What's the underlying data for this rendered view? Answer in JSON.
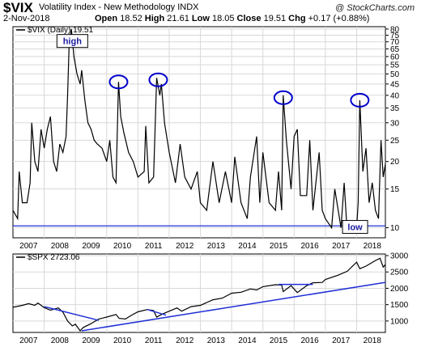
{
  "header": {
    "symbol": "$VIX",
    "name": "Volatility Index - New Methodology",
    "exchange": "INDX",
    "copyright": "@ StockCharts.com",
    "date": "2-Nov-2018",
    "open_label": "Open",
    "open": "18.52",
    "high_label": "High",
    "high": "21.61",
    "low_label": "Low",
    "low": "18.05",
    "close_label": "Close",
    "close": "19.51",
    "chg_label": "Chg",
    "chg": "+0.17 (+0.88%)"
  },
  "colors": {
    "line": "#000000",
    "trend": "#1f2fd6",
    "circle": "#0000cc",
    "grid": "#d8d8d8"
  },
  "chart_data": [
    {
      "type": "line",
      "legend": "$VIX (Daily) 19.51",
      "y_scale": "log",
      "ylim": [
        9,
        82
      ],
      "yticks": [
        10,
        15,
        20,
        25,
        30,
        35,
        40,
        45,
        50,
        55,
        60,
        65,
        70,
        75,
        80
      ],
      "xticks": [
        "2007",
        "2008",
        "2009",
        "2010",
        "2011",
        "2012",
        "2013",
        "2014",
        "2015",
        "2016",
        "2017",
        "2018"
      ],
      "xlim": [
        2007.0,
        2018.92
      ],
      "series": [
        {
          "values": [
            [
              2007.0,
              12
            ],
            [
              2007.15,
              11
            ],
            [
              2007.2,
              18
            ],
            [
              2007.3,
              13
            ],
            [
              2007.45,
              13
            ],
            [
              2007.55,
              16
            ],
            [
              2007.6,
              30
            ],
            [
              2007.7,
              20
            ],
            [
              2007.8,
              18
            ],
            [
              2007.9,
              28
            ],
            [
              2008.0,
              23
            ],
            [
              2008.1,
              28
            ],
            [
              2008.2,
              32
            ],
            [
              2008.3,
              20
            ],
            [
              2008.4,
              18
            ],
            [
              2008.5,
              24
            ],
            [
              2008.6,
              22
            ],
            [
              2008.7,
              26
            ],
            [
              2008.75,
              40
            ],
            [
              2008.8,
              70
            ],
            [
              2008.87,
              80
            ],
            [
              2008.95,
              60
            ],
            [
              2009.05,
              50
            ],
            [
              2009.15,
              45
            ],
            [
              2009.2,
              52
            ],
            [
              2009.3,
              38
            ],
            [
              2009.4,
              30
            ],
            [
              2009.5,
              28
            ],
            [
              2009.6,
              25
            ],
            [
              2009.7,
              24
            ],
            [
              2009.85,
              23
            ],
            [
              2010.0,
              20
            ],
            [
              2010.1,
              25
            ],
            [
              2010.2,
              17
            ],
            [
              2010.3,
              16
            ],
            [
              2010.38,
              46
            ],
            [
              2010.45,
              32
            ],
            [
              2010.55,
              27
            ],
            [
              2010.7,
              22
            ],
            [
              2010.85,
              20
            ],
            [
              2011.0,
              17
            ],
            [
              2011.2,
              18
            ],
            [
              2011.25,
              29
            ],
            [
              2011.35,
              16
            ],
            [
              2011.5,
              17
            ],
            [
              2011.6,
              48
            ],
            [
              2011.7,
              40
            ],
            [
              2011.75,
              45
            ],
            [
              2011.85,
              30
            ],
            [
              2012.0,
              22
            ],
            [
              2012.2,
              16
            ],
            [
              2012.35,
              24
            ],
            [
              2012.5,
              17
            ],
            [
              2012.7,
              15
            ],
            [
              2012.9,
              18
            ],
            [
              2013.0,
              13
            ],
            [
              2013.2,
              12
            ],
            [
              2013.4,
              20
            ],
            [
              2013.6,
              13
            ],
            [
              2013.8,
              18
            ],
            [
              2014.0,
              13
            ],
            [
              2014.1,
              21
            ],
            [
              2014.3,
              13
            ],
            [
              2014.5,
              11
            ],
            [
              2014.6,
              17
            ],
            [
              2014.8,
              26
            ],
            [
              2014.9,
              13
            ],
            [
              2015.0,
              22
            ],
            [
              2015.2,
              13
            ],
            [
              2015.4,
              12
            ],
            [
              2015.5,
              18
            ],
            [
              2015.6,
              12
            ],
            [
              2015.65,
              40
            ],
            [
              2015.75,
              25
            ],
            [
              2015.9,
              15
            ],
            [
              2016.0,
              26
            ],
            [
              2016.1,
              28
            ],
            [
              2016.2,
              14
            ],
            [
              2016.4,
              14
            ],
            [
              2016.5,
              25
            ],
            [
              2016.6,
              12
            ],
            [
              2016.8,
              22
            ],
            [
              2016.9,
              12
            ],
            [
              2017.0,
              11
            ],
            [
              2017.2,
              10
            ],
            [
              2017.3,
              15
            ],
            [
              2017.5,
              10
            ],
            [
              2017.6,
              16
            ],
            [
              2017.7,
              9.5
            ],
            [
              2017.8,
              10
            ],
            [
              2017.9,
              9.8
            ],
            [
              2018.0,
              10
            ],
            [
              2018.05,
              13
            ],
            [
              2018.1,
              38
            ],
            [
              2018.2,
              18
            ],
            [
              2018.3,
              23
            ],
            [
              2018.4,
              13
            ],
            [
              2018.5,
              16
            ],
            [
              2018.6,
              12
            ],
            [
              2018.7,
              11
            ],
            [
              2018.78,
              25
            ],
            [
              2018.85,
              17
            ],
            [
              2018.92,
              19.5
            ]
          ]
        }
      ],
      "trendline": {
        "value": 10.2
      },
      "annotations": [
        {
          "text": "high",
          "x": 2008.9,
          "y": 70
        },
        {
          "text": "low",
          "x": 2017.95,
          "y": 10
        }
      ],
      "circles": [
        [
          2010.38,
          46
        ],
        [
          2011.65,
          47
        ],
        [
          2015.65,
          39
        ],
        [
          2018.1,
          38
        ]
      ]
    },
    {
      "type": "line",
      "legend": "$SPX 2723.06",
      "ylim": [
        650,
        3050
      ],
      "yticks": [
        1000,
        1500,
        2000,
        2500,
        3000
      ],
      "xticks": [
        "2007",
        "2008",
        "2009",
        "2010",
        "2011",
        "2012",
        "2013",
        "2014",
        "2015",
        "2016",
        "2017",
        "2018"
      ],
      "xlim": [
        2007.0,
        2018.92
      ],
      "series": [
        {
          "values": [
            [
              2007.0,
              1420
            ],
            [
              2007.3,
              1480
            ],
            [
              2007.5,
              1530
            ],
            [
              2007.7,
              1480
            ],
            [
              2007.8,
              1550
            ],
            [
              2008.0,
              1410
            ],
            [
              2008.2,
              1330
            ],
            [
              2008.45,
              1400
            ],
            [
              2008.6,
              1270
            ],
            [
              2008.75,
              1000
            ],
            [
              2008.9,
              850
            ],
            [
              2009.0,
              900
            ],
            [
              2009.15,
              700
            ],
            [
              2009.25,
              800
            ],
            [
              2009.5,
              920
            ],
            [
              2009.75,
              1060
            ],
            [
              2010.0,
              1120
            ],
            [
              2010.3,
              1200
            ],
            [
              2010.4,
              1080
            ],
            [
              2010.6,
              1060
            ],
            [
              2010.8,
              1180
            ],
            [
              2011.0,
              1280
            ],
            [
              2011.3,
              1350
            ],
            [
              2011.5,
              1320
            ],
            [
              2011.6,
              1120
            ],
            [
              2011.75,
              1200
            ],
            [
              2012.0,
              1300
            ],
            [
              2012.25,
              1400
            ],
            [
              2012.4,
              1300
            ],
            [
              2012.7,
              1440
            ],
            [
              2013.0,
              1480
            ],
            [
              2013.4,
              1650
            ],
            [
              2013.7,
              1700
            ],
            [
              2014.0,
              1850
            ],
            [
              2014.3,
              1880
            ],
            [
              2014.6,
              1980
            ],
            [
              2014.8,
              1950
            ],
            [
              2015.0,
              2050
            ],
            [
              2015.4,
              2110
            ],
            [
              2015.6,
              2100
            ],
            [
              2015.65,
              1900
            ],
            [
              2015.9,
              2080
            ],
            [
              2016.1,
              1870
            ],
            [
              2016.4,
              2080
            ],
            [
              2016.6,
              2170
            ],
            [
              2016.9,
              2180
            ],
            [
              2017.0,
              2270
            ],
            [
              2017.4,
              2400
            ],
            [
              2017.7,
              2520
            ],
            [
              2018.0,
              2800
            ],
            [
              2018.1,
              2600
            ],
            [
              2018.3,
              2680
            ],
            [
              2018.6,
              2850
            ],
            [
              2018.75,
              2920
            ],
            [
              2018.85,
              2650
            ],
            [
              2018.92,
              2723
            ]
          ]
        }
      ],
      "trendlines": [
        [
          [
            2008.0,
            1440
          ],
          [
            2009.75,
            1020
          ]
        ],
        [
          [
            2011.3,
            1350
          ],
          [
            2011.9,
            1180
          ]
        ],
        [
          [
            2015.5,
            2120
          ],
          [
            2016.6,
            2120
          ]
        ],
        [
          [
            2009.2,
            700
          ],
          [
            2018.92,
            2180
          ]
        ]
      ]
    }
  ]
}
